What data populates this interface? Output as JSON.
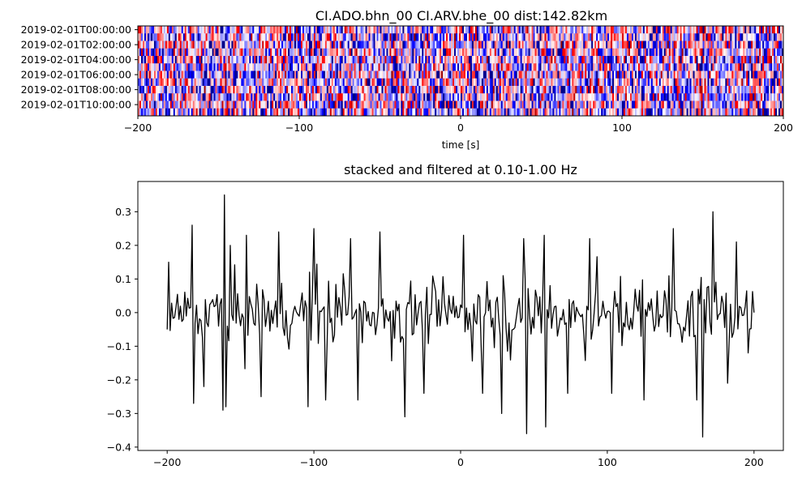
{
  "chart_data": [
    {
      "type": "heatmap",
      "title": "CI.ADO.bhn_00 CI.ARV.bhe_00  dist:142.82km",
      "xlabel": "time [s]",
      "ylabel": "",
      "xlim": [
        -200,
        200
      ],
      "xticks": [
        -200,
        -100,
        0,
        100,
        200
      ],
      "xtick_labels": [
        "−200",
        "−100",
        "0",
        "100",
        "200"
      ],
      "ytick_labels": [
        "2019-02-01T00:00:00",
        "2019-02-01T02:00:00",
        "2019-02-01T04:00:00",
        "2019-02-01T06:00:00",
        "2019-02-01T08:00:00",
        "2019-02-01T10:00:00"
      ],
      "rows": 12,
      "columns": 400,
      "colormap": "seismic",
      "colors": {
        "low": "#00008b",
        "mid": "#ffffff",
        "high": "#ff0000",
        "peak": "#8b0000"
      }
    },
    {
      "type": "line",
      "title": "stacked and filtered at 0.10-1.00 Hz",
      "xlabel": "",
      "ylabel": "",
      "xlim": [
        -220,
        220
      ],
      "ylim": [
        -0.41,
        0.39
      ],
      "xticks": [
        -200,
        -100,
        0,
        100,
        200
      ],
      "xtick_labels": [
        "−200",
        "−100",
        "0",
        "100",
        "200"
      ],
      "yticks": [
        -0.4,
        -0.3,
        -0.2,
        -0.1,
        0.0,
        0.1,
        0.2,
        0.3
      ],
      "ytick_labels": [
        "−0.4",
        "−0.3",
        "−0.2",
        "−0.1",
        "0.0",
        "0.1",
        "0.2",
        "0.3"
      ],
      "line_color": "#000000",
      "x_range": [
        -200,
        200
      ],
      "n_points": 401,
      "peaks": [
        {
          "x": -161,
          "y": 0.35
        },
        {
          "x": -162,
          "y": -0.29
        },
        {
          "x": -160,
          "y": -0.28
        },
        {
          "x": -183,
          "y": 0.26
        },
        {
          "x": -182,
          "y": -0.27
        },
        {
          "x": -175,
          "y": -0.22
        },
        {
          "x": -146,
          "y": 0.23
        },
        {
          "x": -136,
          "y": -0.25
        },
        {
          "x": -124,
          "y": 0.24
        },
        {
          "x": -100,
          "y": 0.25
        },
        {
          "x": -104,
          "y": -0.28
        },
        {
          "x": -92,
          "y": -0.26
        },
        {
          "x": -75,
          "y": 0.22
        },
        {
          "x": -70,
          "y": -0.26
        },
        {
          "x": -55,
          "y": 0.24
        },
        {
          "x": -38,
          "y": -0.31
        },
        {
          "x": -25,
          "y": -0.24
        },
        {
          "x": 2,
          "y": 0.23
        },
        {
          "x": 15,
          "y": -0.24
        },
        {
          "x": 28,
          "y": -0.3
        },
        {
          "x": 43,
          "y": 0.22
        },
        {
          "x": 45,
          "y": -0.36
        },
        {
          "x": 58,
          "y": -0.34
        },
        {
          "x": 57,
          "y": 0.23
        },
        {
          "x": 73,
          "y": -0.24
        },
        {
          "x": 88,
          "y": 0.22
        },
        {
          "x": 103,
          "y": -0.24
        },
        {
          "x": 125,
          "y": -0.26
        },
        {
          "x": 145,
          "y": 0.25
        },
        {
          "x": 161,
          "y": -0.26
        },
        {
          "x": 165,
          "y": -0.37
        },
        {
          "x": 172,
          "y": 0.3
        },
        {
          "x": 182,
          "y": -0.21
        },
        {
          "x": 188,
          "y": 0.21
        },
        {
          "x": 196,
          "y": -0.12
        },
        {
          "x": -199,
          "y": 0.15
        },
        {
          "x": -200,
          "y": -0.05
        },
        {
          "x": 200,
          "y": 0.0
        }
      ]
    }
  ]
}
